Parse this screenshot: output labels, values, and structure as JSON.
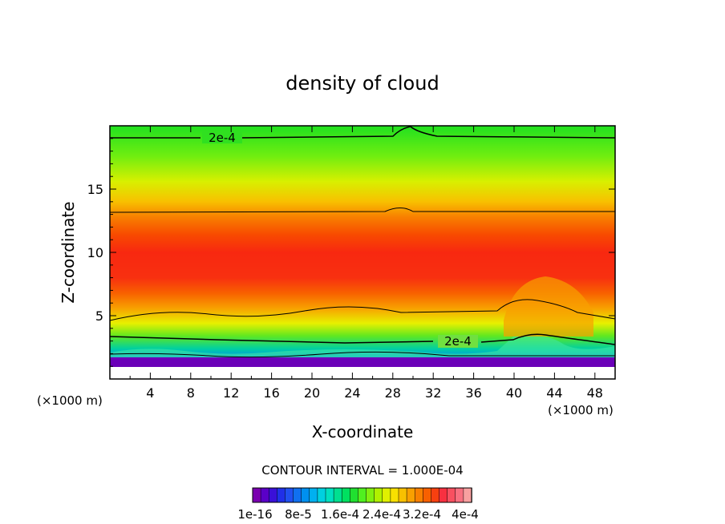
{
  "chart_data": {
    "type": "heatmap",
    "title": "density of cloud",
    "xlabel": "X-coordinate",
    "ylabel": "Z-coordinate",
    "x_unit": "(×1000 m)",
    "x_unit_right": "(×1000 m)",
    "xlim": [
      0,
      50
    ],
    "ylim": [
      0,
      20
    ],
    "x_ticks": [
      "4",
      "8",
      "12",
      "16",
      "20",
      "24",
      "28",
      "32",
      "36",
      "40",
      "44",
      "48"
    ],
    "y_ticks": [
      "5",
      "10",
      "15"
    ],
    "contour_interval_text": "CONTOUR INTERVAL = 1.000E-04",
    "contour_labels": [
      "2e-4",
      "2e-4"
    ],
    "colorbar_labels": [
      "1e-16",
      "8e-5",
      "1.6e-4",
      "2.4e-4",
      "3.2e-4",
      "4e-4"
    ],
    "colorbar_colors": [
      "#7a00b0",
      "#5a00c8",
      "#3a10d8",
      "#2030e8",
      "#2050f0",
      "#1070f0",
      "#0090f0",
      "#00b0f0",
      "#00d0e0",
      "#00e0c0",
      "#00e090",
      "#00e060",
      "#20e030",
      "#50f020",
      "#80f010",
      "#b0f000",
      "#e0f000",
      "#f8e000",
      "#f8c000",
      "#f8a000",
      "#f88000",
      "#f86000",
      "#f84010",
      "#f83040",
      "#f85060",
      "#f87080",
      "#f8a0a0"
    ],
    "density_profile_by_height": {
      "z_km": [
        1,
        2,
        3,
        4,
        5,
        6,
        7,
        8,
        9,
        10,
        11,
        12,
        13,
        14,
        15,
        16,
        17,
        18,
        19,
        20
      ],
      "density": [
        2e-05,
        0.0001,
        0.00019,
        0.00025,
        0.00031,
        0.00036,
        0.00039,
        0.0004,
        0.00041,
        0.0004,
        0.00038,
        0.00035,
        0.00031,
        0.00028,
        0.00026,
        0.00024,
        0.00022,
        0.00021,
        0.0002,
        0.00018
      ]
    }
  }
}
